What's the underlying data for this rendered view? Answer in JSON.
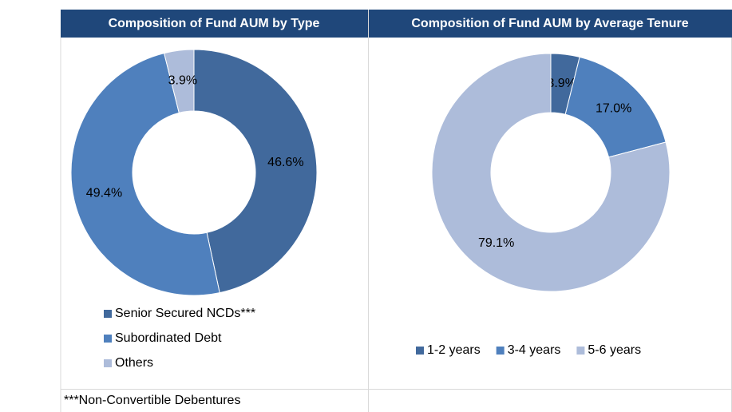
{
  "chart_data": [
    {
      "type": "donut",
      "title": "Composition of Fund AUM by Type",
      "categories": [
        "Senior Secured NCDs***",
        "Subordinated Debt",
        "Others"
      ],
      "values": [
        46.6,
        49.4,
        3.9
      ],
      "value_labels": [
        "46.6%",
        "49.4%",
        "3.9%"
      ],
      "colors": [
        "#41699c",
        "#4f80bd",
        "#adbcda"
      ],
      "legend": "bottom-vertical",
      "note": "***Non-Convertible Debentures"
    },
    {
      "type": "donut",
      "title": "Composition of Fund AUM by Average Tenure",
      "categories": [
        "1-2 years",
        "3-4 years",
        "5-6 years"
      ],
      "values": [
        3.9,
        17.0,
        79.1
      ],
      "value_labels": [
        "3.9%",
        "17.0%",
        "79.1%"
      ],
      "colors": [
        "#41699c",
        "#4f80bd",
        "#adbcda"
      ],
      "legend": "bottom-horizontal"
    }
  ]
}
